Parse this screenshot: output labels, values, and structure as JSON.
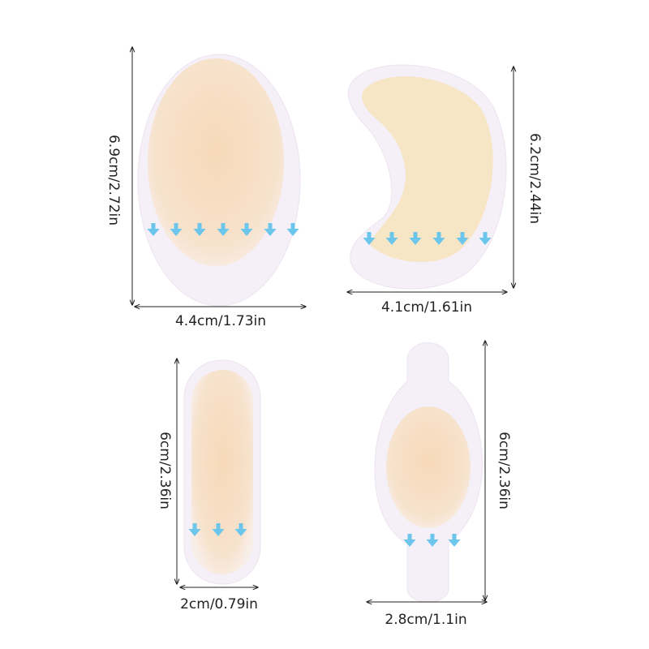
{
  "patches": [
    {
      "shape": "oval",
      "height_label": "6.9cm/2.72in",
      "width_label": "4.4cm/1.73in"
    },
    {
      "shape": "crescent",
      "height_label": "6.2cm/2.44in",
      "width_label": "4.1cm/1.61in"
    },
    {
      "shape": "strip",
      "height_label": "6cm/2.36in",
      "width_label": "2cm/0.79in"
    },
    {
      "shape": "bulb",
      "height_label": "6cm/2.36in",
      "width_label": "2.8cm/1.1in"
    }
  ],
  "colors": {
    "outer_film": "#f6f0f8",
    "pad": "#f6ddc0",
    "arrow": "#6cc6ec",
    "dimension_line": "#222222"
  }
}
